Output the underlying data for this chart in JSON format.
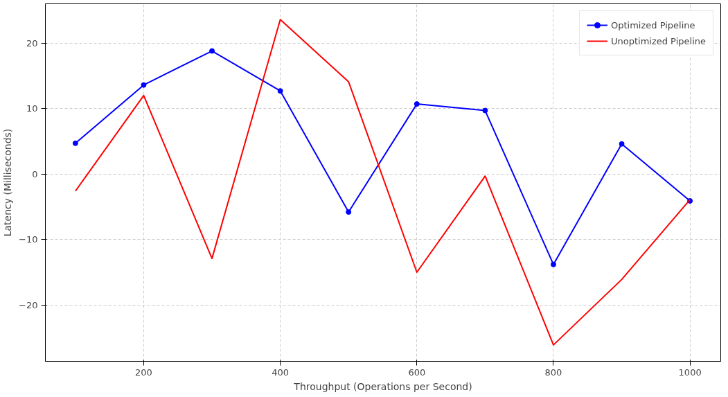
{
  "chart_data": {
    "type": "line",
    "xlabel": "Throughput (Operations per Second)",
    "ylabel": "Latency (Milliseconds)",
    "x": [
      100,
      200,
      300,
      400,
      500,
      600,
      700,
      800,
      900,
      1000
    ],
    "series": [
      {
        "name": "Optimized Pipeline",
        "color": "#0000ff",
        "marker": "circle",
        "values": [
          4.7,
          13.6,
          18.8,
          12.7,
          -5.8,
          10.7,
          9.7,
          -13.8,
          4.6,
          -4.1
        ]
      },
      {
        "name": "Unoptimized Pipeline",
        "color": "#ff0000",
        "marker": "none",
        "values": [
          -2.6,
          12.0,
          -12.9,
          23.6,
          14.1,
          -15.0,
          -0.3,
          -26.1,
          -16.1,
          -3.9
        ]
      }
    ],
    "xlim": [
      56,
      1045
    ],
    "ylim": [
      -28.6,
      26.0
    ],
    "xticks": [
      200,
      400,
      600,
      800,
      1000
    ],
    "yticks": [
      {
        "value": -20,
        "label": "−20"
      },
      {
        "value": -10,
        "label": "−10"
      },
      0,
      10,
      20
    ],
    "grid": true,
    "legend": "top right",
    "line_style": "solid"
  }
}
